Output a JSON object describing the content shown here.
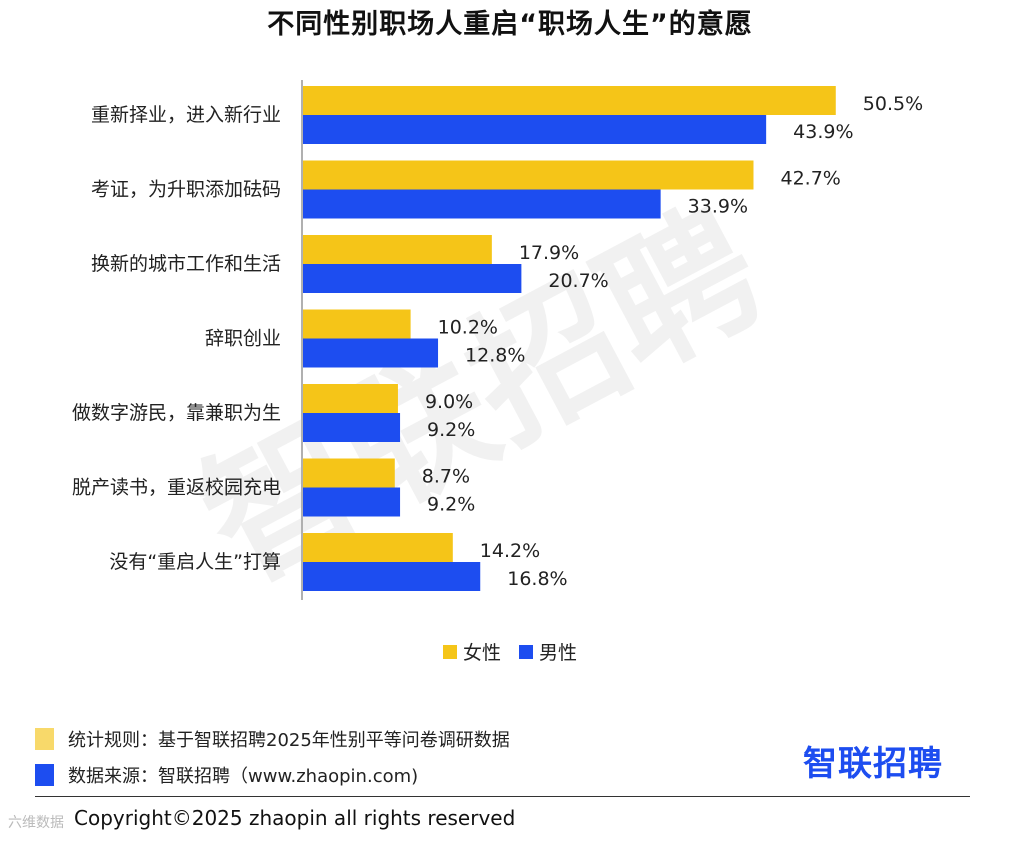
{
  "title": "不同性别职场人重启“职场人生”的意愿",
  "watermark": "智联招聘",
  "colors": {
    "female": "#F5C518",
    "male": "#1D4DF0",
    "source_box_rule": "#F8D96A"
  },
  "legend": {
    "female": "女性",
    "male": "男性"
  },
  "footnotes": {
    "rule": "统计规则：基于智联招聘2025年性别平等问卷调研数据",
    "source": "数据来源：智联招聘（www.zhaopin.com)"
  },
  "logo_text": "智联招聘",
  "copyright": "Copyright©2025 zhaopin all rights reserved",
  "corner_mark": "六维数据",
  "chart_data": {
    "type": "bar",
    "orientation": "horizontal",
    "title": "不同性别职场人重启“职场人生”的意愿",
    "categories": [
      "重新择业，进入新行业",
      "考证，为升职添加砝码",
      "换新的城市工作和生活",
      "辞职创业",
      "做数字游民，靠兼职为生",
      "脱产读书，重返校园充电",
      "没有“重启人生”打算"
    ],
    "series": [
      {
        "name": "女性",
        "values": [
          50.5,
          42.7,
          17.9,
          10.2,
          9.0,
          8.7,
          14.2
        ],
        "labels": [
          "50.5%",
          "42.7%",
          "17.9%",
          "10.2%",
          "9.0%",
          "8.7%",
          "14.2%"
        ]
      },
      {
        "name": "男性",
        "values": [
          43.9,
          33.9,
          20.7,
          12.8,
          9.2,
          9.2,
          16.8
        ],
        "labels": [
          "43.9%",
          "33.9%",
          "20.7%",
          "12.8%",
          "9.2%",
          "9.2%",
          "16.8%"
        ]
      }
    ],
    "unit": "%",
    "legend_position": "bottom-center",
    "grid": false
  }
}
